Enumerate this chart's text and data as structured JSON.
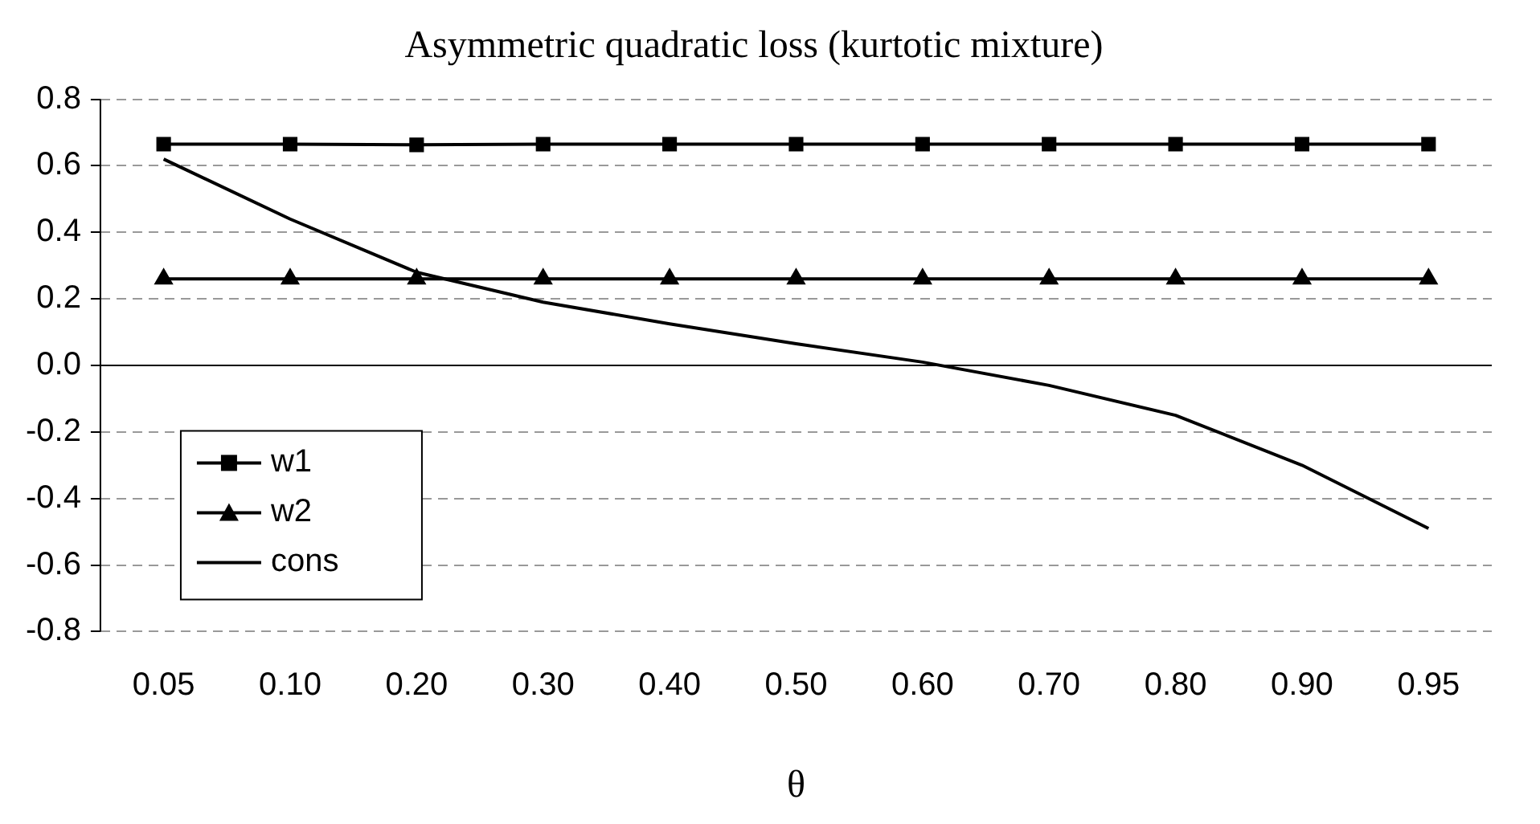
{
  "chart_data": {
    "type": "line",
    "title": "Asymmetric quadratic loss (kurtotic mixture)",
    "xlabel": "θ",
    "categories": [
      "0.05",
      "0.10",
      "0.20",
      "0.30",
      "0.40",
      "0.50",
      "0.60",
      "0.70",
      "0.80",
      "0.90",
      "0.95"
    ],
    "ylim": [
      -0.8,
      0.8
    ],
    "yticks": [
      {
        "value": -0.8,
        "label": "-0.8"
      },
      {
        "value": -0.6,
        "label": "-0.6"
      },
      {
        "value": -0.4,
        "label": "-0.4"
      },
      {
        "value": -0.2,
        "label": "-0.2"
      },
      {
        "value": 0,
        "label": "0.0"
      },
      {
        "value": 0.2,
        "label": "0.2"
      },
      {
        "value": 0.4,
        "label": "0.4"
      },
      {
        "value": 0.6,
        "label": "0.6"
      },
      {
        "value": 0.8,
        "label": "0.8"
      }
    ],
    "grid": "y",
    "legend": "bottom left",
    "line_style": "solid",
    "series": [
      {
        "name": "w1",
        "color": "#000000",
        "marker": "square",
        "values": [
          0.665,
          0.665,
          0.663,
          0.665,
          0.665,
          0.665,
          0.665,
          0.665,
          0.665,
          0.665,
          0.665
        ]
      },
      {
        "name": "w2",
        "color": "#000000",
        "marker": "triangle",
        "values": [
          0.26,
          0.26,
          0.26,
          0.26,
          0.26,
          0.26,
          0.26,
          0.26,
          0.26,
          0.26,
          0.26
        ]
      },
      {
        "name": "cons",
        "color": "#000000",
        "marker": "none",
        "values": [
          0.62,
          0.44,
          0.28,
          0.19,
          0.125,
          0.065,
          0.01,
          -0.06,
          -0.15,
          -0.3,
          -0.49
        ]
      }
    ]
  }
}
